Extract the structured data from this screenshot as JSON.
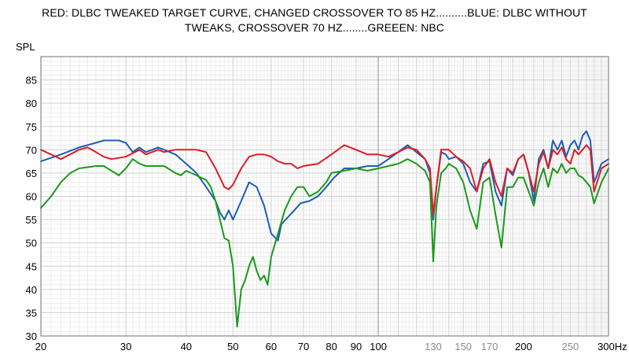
{
  "chart_data": {
    "type": "line",
    "title_line1": "RED: DLBC TWEAKED TARGET CURVE, CHANGED CROSSOVER TO 85 HZ..........BLUE: DLBC WITHOUT",
    "title_line2": "TWEAKS, CROSSOVER 70 HZ........GREEEN: NBC",
    "ylabel": "SPL",
    "xscale": "log",
    "xlim": [
      20,
      300
    ],
    "ylim": [
      30,
      90
    ],
    "grid": true,
    "y_ticks": [
      30,
      35,
      40,
      45,
      50,
      55,
      60,
      65,
      70,
      75,
      80,
      85
    ],
    "x_ticks": [
      {
        "v": 20,
        "label": "20",
        "color": "#000000"
      },
      {
        "v": 30,
        "label": "30",
        "color": "#000000"
      },
      {
        "v": 40,
        "label": "40",
        "color": "#000000"
      },
      {
        "v": 50,
        "label": "50",
        "color": "#000000"
      },
      {
        "v": 60,
        "label": "60",
        "color": "#000000"
      },
      {
        "v": 70,
        "label": "70",
        "color": "#000000"
      },
      {
        "v": 80,
        "label": "80",
        "color": "#000000"
      },
      {
        "v": 90,
        "label": "90",
        "color": "#000000"
      },
      {
        "v": 100,
        "label": "100",
        "color": "#000000"
      },
      {
        "v": 130,
        "label": "130",
        "color": "#8c8c8c"
      },
      {
        "v": 150,
        "label": "150",
        "color": "#8c8c8c"
      },
      {
        "v": 170,
        "label": "170",
        "color": "#8c8c8c"
      },
      {
        "v": 200,
        "label": "200",
        "color": "#000000"
      },
      {
        "v": 250,
        "label": "250",
        "color": "#8c8c8c"
      },
      {
        "v": 300,
        "label": "300Hz",
        "color": "#000000"
      }
    ],
    "series": [
      {
        "color": "#1a5fb4",
        "points": [
          [
            20,
            67.5
          ],
          [
            22,
            69
          ],
          [
            24,
            70.5
          ],
          [
            26,
            71.5
          ],
          [
            27,
            72
          ],
          [
            29,
            72
          ],
          [
            30,
            71.5
          ],
          [
            31,
            69.5
          ],
          [
            32,
            70.5
          ],
          [
            33,
            69.5
          ],
          [
            35,
            70.5
          ],
          [
            36,
            70
          ],
          [
            38,
            69
          ],
          [
            40,
            67
          ],
          [
            42,
            65
          ],
          [
            44,
            62
          ],
          [
            46,
            59
          ],
          [
            47,
            56.5
          ],
          [
            48,
            55
          ],
          [
            49,
            57
          ],
          [
            50,
            55
          ],
          [
            52,
            59
          ],
          [
            54,
            63
          ],
          [
            56,
            62
          ],
          [
            58,
            58
          ],
          [
            60,
            52
          ],
          [
            62,
            50.5
          ],
          [
            63,
            54
          ],
          [
            65,
            55.5
          ],
          [
            67,
            57
          ],
          [
            69,
            58.5
          ],
          [
            72,
            59
          ],
          [
            75,
            60
          ],
          [
            78,
            62
          ],
          [
            81,
            64
          ],
          [
            85,
            66
          ],
          [
            90,
            66
          ],
          [
            95,
            66.5
          ],
          [
            100,
            66.5
          ],
          [
            105,
            68
          ],
          [
            110,
            69.5
          ],
          [
            115,
            71
          ],
          [
            120,
            69.5
          ],
          [
            125,
            68
          ],
          [
            128,
            65
          ],
          [
            130,
            55
          ],
          [
            132,
            62
          ],
          [
            135,
            69.5
          ],
          [
            138,
            69
          ],
          [
            140,
            68
          ],
          [
            145,
            68.5
          ],
          [
            150,
            67
          ],
          [
            155,
            63
          ],
          [
            160,
            61
          ],
          [
            165,
            67
          ],
          [
            170,
            67.5
          ],
          [
            175,
            61
          ],
          [
            180,
            58
          ],
          [
            185,
            66
          ],
          [
            190,
            64.5
          ],
          [
            195,
            68
          ],
          [
            200,
            69
          ],
          [
            205,
            65
          ],
          [
            210,
            59
          ],
          [
            215,
            68
          ],
          [
            220,
            70
          ],
          [
            225,
            66
          ],
          [
            230,
            72
          ],
          [
            235,
            70
          ],
          [
            240,
            72
          ],
          [
            245,
            68.5
          ],
          [
            250,
            71
          ],
          [
            255,
            72
          ],
          [
            260,
            70
          ],
          [
            265,
            73
          ],
          [
            270,
            74
          ],
          [
            275,
            72
          ],
          [
            280,
            63
          ],
          [
            290,
            67
          ],
          [
            300,
            68
          ]
        ]
      },
      {
        "color": "#e01b24",
        "points": [
          [
            20,
            70
          ],
          [
            21,
            69
          ],
          [
            22,
            68
          ],
          [
            24,
            70
          ],
          [
            25,
            70.5
          ],
          [
            26,
            69.5
          ],
          [
            27,
            68.5
          ],
          [
            28,
            68
          ],
          [
            30,
            68.5
          ],
          [
            32,
            70
          ],
          [
            33,
            69
          ],
          [
            35,
            70
          ],
          [
            36,
            69.5
          ],
          [
            38,
            70
          ],
          [
            40,
            70
          ],
          [
            42,
            70
          ],
          [
            44,
            69.5
          ],
          [
            46,
            66
          ],
          [
            48,
            62
          ],
          [
            49,
            61.5
          ],
          [
            50,
            62.5
          ],
          [
            52,
            66
          ],
          [
            54,
            68.5
          ],
          [
            56,
            69
          ],
          [
            58,
            69
          ],
          [
            60,
            68.5
          ],
          [
            62,
            67.5
          ],
          [
            64,
            67
          ],
          [
            66,
            67
          ],
          [
            68,
            66
          ],
          [
            70,
            66.5
          ],
          [
            75,
            67
          ],
          [
            80,
            69
          ],
          [
            85,
            71
          ],
          [
            90,
            70
          ],
          [
            95,
            69
          ],
          [
            100,
            69
          ],
          [
            105,
            68.5
          ],
          [
            110,
            69.5
          ],
          [
            115,
            70.5
          ],
          [
            120,
            70
          ],
          [
            125,
            68
          ],
          [
            128,
            66
          ],
          [
            130,
            56
          ],
          [
            132,
            62
          ],
          [
            135,
            70
          ],
          [
            140,
            70
          ],
          [
            145,
            68.5
          ],
          [
            150,
            67.5
          ],
          [
            155,
            66
          ],
          [
            160,
            61
          ],
          [
            165,
            66
          ],
          [
            170,
            68
          ],
          [
            175,
            63
          ],
          [
            180,
            60
          ],
          [
            185,
            66
          ],
          [
            190,
            65
          ],
          [
            195,
            68
          ],
          [
            200,
            69
          ],
          [
            205,
            65
          ],
          [
            210,
            61
          ],
          [
            215,
            67
          ],
          [
            220,
            69.5
          ],
          [
            225,
            66
          ],
          [
            230,
            70
          ],
          [
            235,
            69
          ],
          [
            240,
            70.5
          ],
          [
            245,
            68
          ],
          [
            250,
            67
          ],
          [
            255,
            70
          ],
          [
            260,
            69
          ],
          [
            265,
            70
          ],
          [
            270,
            71
          ],
          [
            275,
            70
          ],
          [
            280,
            61
          ],
          [
            290,
            66
          ],
          [
            300,
            67
          ]
        ]
      },
      {
        "color": "#1a9a1a",
        "points": [
          [
            20,
            57.5
          ],
          [
            21,
            60
          ],
          [
            22,
            63
          ],
          [
            23,
            65
          ],
          [
            24,
            66
          ],
          [
            26,
            66.5
          ],
          [
            27,
            66.5
          ],
          [
            28,
            65.5
          ],
          [
            29,
            64.5
          ],
          [
            30,
            66
          ],
          [
            31,
            68
          ],
          [
            32,
            67
          ],
          [
            33,
            66.5
          ],
          [
            34,
            66.5
          ],
          [
            36,
            66.5
          ],
          [
            38,
            65
          ],
          [
            39,
            64.5
          ],
          [
            40,
            65.5
          ],
          [
            42,
            64.5
          ],
          [
            44,
            63.5
          ],
          [
            45,
            62
          ],
          [
            46,
            59
          ],
          [
            47,
            55
          ],
          [
            48,
            51
          ],
          [
            49,
            50.5
          ],
          [
            50,
            45
          ],
          [
            51,
            32
          ],
          [
            52,
            40
          ],
          [
            53,
            42
          ],
          [
            54,
            45
          ],
          [
            55,
            47
          ],
          [
            56,
            44
          ],
          [
            57,
            42
          ],
          [
            58,
            43
          ],
          [
            59,
            41
          ],
          [
            60,
            47
          ],
          [
            62,
            52
          ],
          [
            64,
            57
          ],
          [
            66,
            60
          ],
          [
            68,
            62
          ],
          [
            70,
            62
          ],
          [
            72,
            60
          ],
          [
            75,
            61
          ],
          [
            78,
            63
          ],
          [
            80,
            65
          ],
          [
            85,
            65.5
          ],
          [
            90,
            66
          ],
          [
            95,
            65.5
          ],
          [
            100,
            66
          ],
          [
            105,
            66.5
          ],
          [
            110,
            67
          ],
          [
            115,
            68
          ],
          [
            120,
            67
          ],
          [
            125,
            65.5
          ],
          [
            128,
            63
          ],
          [
            130,
            46
          ],
          [
            132,
            58
          ],
          [
            135,
            65
          ],
          [
            138,
            66
          ],
          [
            140,
            67
          ],
          [
            145,
            66
          ],
          [
            150,
            63
          ],
          [
            155,
            57
          ],
          [
            160,
            53
          ],
          [
            165,
            63
          ],
          [
            170,
            64
          ],
          [
            175,
            56
          ],
          [
            180,
            49
          ],
          [
            185,
            62
          ],
          [
            190,
            62
          ],
          [
            195,
            64
          ],
          [
            200,
            64
          ],
          [
            205,
            61
          ],
          [
            210,
            58
          ],
          [
            215,
            63
          ],
          [
            220,
            66
          ],
          [
            225,
            62
          ],
          [
            230,
            66
          ],
          [
            235,
            65
          ],
          [
            240,
            67
          ],
          [
            245,
            65
          ],
          [
            250,
            66
          ],
          [
            255,
            66
          ],
          [
            260,
            64.5
          ],
          [
            265,
            64
          ],
          [
            270,
            63
          ],
          [
            275,
            62
          ],
          [
            280,
            58.5
          ],
          [
            290,
            63
          ],
          [
            300,
            66
          ]
        ]
      }
    ]
  }
}
